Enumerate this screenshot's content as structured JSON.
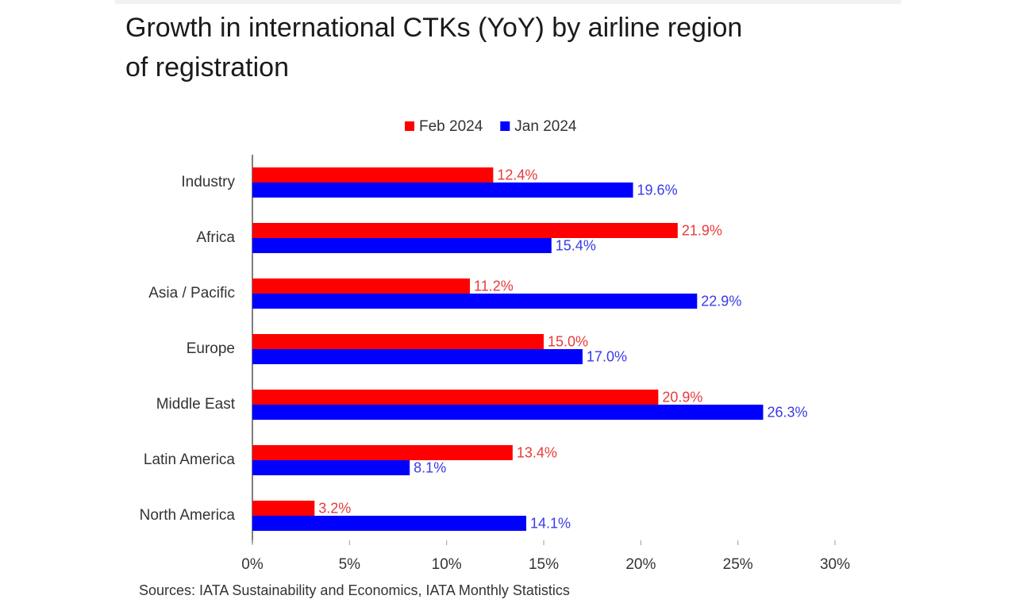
{
  "chart_data": {
    "type": "hbar",
    "title": "Growth in international CTKs (YoY) by airline region of registration",
    "source": "Sources: IATA Sustainability and Economics, IATA Monthly Statistics",
    "categories": [
      "Industry",
      "Africa",
      "Asia / Pacific",
      "Europe",
      "Middle East",
      "Latin America",
      "North America"
    ],
    "series": [
      {
        "name": "Feb 2024",
        "color": "#ff0000",
        "label_color": "#e83a3a",
        "values": [
          12.4,
          21.9,
          11.2,
          15.0,
          20.9,
          13.4,
          3.2
        ],
        "value_labels": [
          "12.4%",
          "21.9%",
          "11.2%",
          "15.0%",
          "20.9%",
          "13.4%",
          "3.2%"
        ]
      },
      {
        "name": "Jan 2024",
        "color": "#0000ff",
        "label_color": "#3a3ae8",
        "values": [
          19.6,
          15.4,
          22.9,
          17.0,
          26.3,
          8.1,
          14.1
        ],
        "value_labels": [
          "19.6%",
          "15.4%",
          "22.9%",
          "17.0%",
          "26.3%",
          "8.1%",
          "14.1%"
        ]
      }
    ],
    "xlim": [
      0,
      30
    ],
    "xticks": [
      {
        "value": 0,
        "label": "0%"
      },
      {
        "value": 5,
        "label": "5%"
      },
      {
        "value": 10,
        "label": "10%"
      },
      {
        "value": 15,
        "label": "15%"
      },
      {
        "value": 20,
        "label": "20%"
      },
      {
        "value": 25,
        "label": "25%"
      },
      {
        "value": 30,
        "label": "30%"
      }
    ],
    "grid": false,
    "legend": "top"
  }
}
